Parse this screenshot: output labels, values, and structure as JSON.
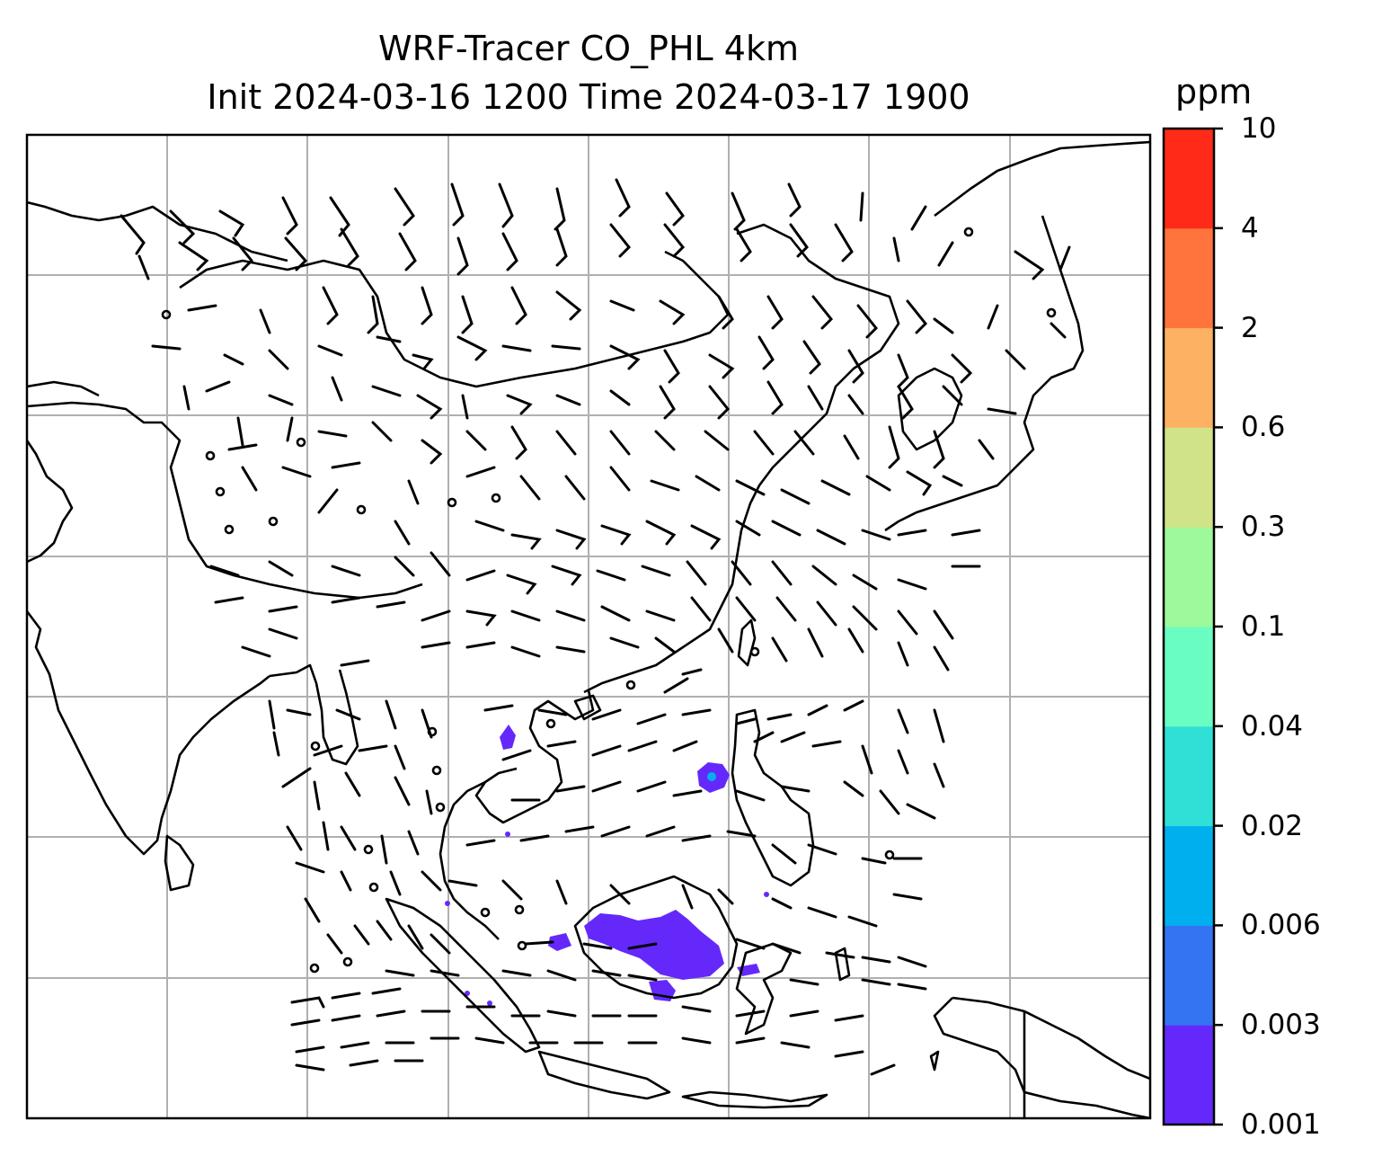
{
  "title": {
    "line1": "WRF-Tracer CO_PHL 4km",
    "line2": "Init 2024-03-16 1200 Time 2024-03-17 1900"
  },
  "colorbar": {
    "unit": "ppm",
    "levels": [
      "0.001",
      "0.003",
      "0.006",
      "0.02",
      "0.04",
      "0.1",
      "0.3",
      "0.6",
      "2",
      "4",
      "10"
    ],
    "colors": [
      "#6429fa",
      "#3474f3",
      "#00b0ee",
      "#30e0d6",
      "#6afdc2",
      "#9df99a",
      "#d1e389",
      "#fdb263",
      "#ff743c",
      "#ff2a17"
    ]
  },
  "map": {
    "features": [
      "coastlines",
      "country-borders",
      "gridlines",
      "wind-barbs",
      "calm-wind-circles",
      "tracer-plumes"
    ],
    "plume_color": "#6429fa"
  }
}
